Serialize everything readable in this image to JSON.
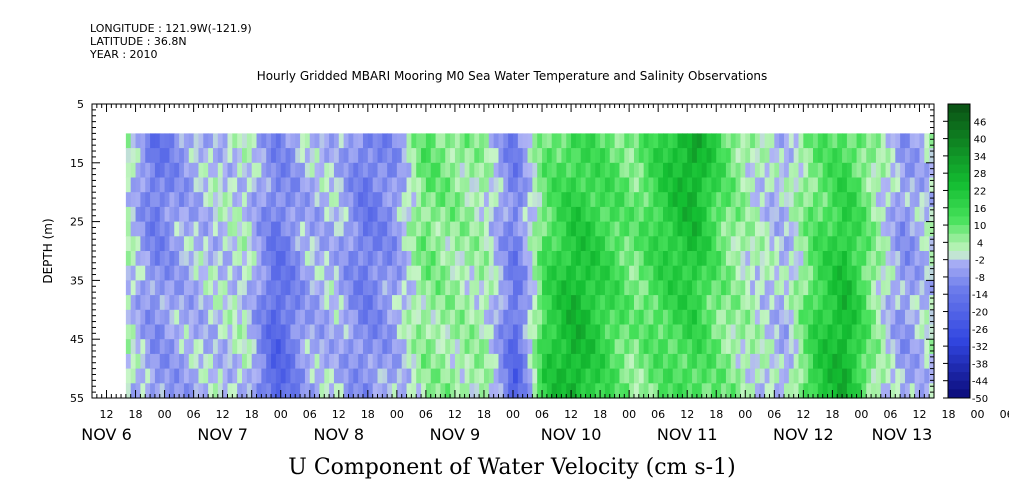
{
  "header": {
    "longitude": "LONGITUDE : 121.9W(-121.9)",
    "latitude": "LATITUDE : 36.8N",
    "year": "YEAR : 2010"
  },
  "chart_data": {
    "type": "heatmap",
    "title": "Hourly Gridded MBARI Mooring M0 Sea Water Temperature and Salinity Observations",
    "xlabel": "U Component of Water Velocity (cm s-1)",
    "ylabel": "DEPTH (m)",
    "ylim": [
      5,
      55
    ],
    "y_ticks": [
      5,
      15,
      25,
      35,
      45,
      55
    ],
    "x_hour_ticks": [
      "12",
      "18",
      "00",
      "06",
      "12",
      "18",
      "00",
      "06",
      "12",
      "18",
      "00",
      "06",
      "12",
      "18",
      "00",
      "06",
      "12",
      "18",
      "00",
      "06",
      "12",
      "18",
      "00",
      "06",
      "12",
      "18",
      "00",
      "06",
      "12",
      "18",
      "00",
      "06"
    ],
    "x_day_labels": [
      "NOV  6",
      "NOV  7",
      "NOV  8",
      "NOV  9",
      "NOV 10",
      "NOV 11",
      "NOV 12",
      "NOV 13"
    ],
    "x_start": "2010-11-06 09:00",
    "x_end": "2010-11-13 15:00",
    "data_start": "2010-11-06 16:00",
    "data_depth_range": [
      10,
      55
    ],
    "colorbar_ticks": [
      "46",
      "40",
      "34",
      "28",
      "22",
      "16",
      "10",
      "4",
      "-2",
      "-8",
      "-14",
      "-20",
      "-26",
      "-32",
      "-38",
      "-44",
      "-50"
    ],
    "colorbar_range": [
      -50,
      52
    ],
    "colors": {
      "strong_positive": "#0a5a14",
      "positive": "#22dd44",
      "weak_positive": "#b4f0b4",
      "weak_negative": "#a8aef0",
      "negative": "#4c5ee8",
      "strong_negative": "#0a0a78"
    },
    "velocity_profile": {
      "times": [
        "11-06 16:00",
        "11-07 00:00",
        "11-07 06:00",
        "11-07 12:00",
        "11-07 18:00",
        "11-08 00:00",
        "11-08 06:00",
        "11-08 12:00",
        "11-08 18:00",
        "11-09 00:00",
        "11-09 06:00",
        "11-09 12:00",
        "11-09 18:00",
        "11-10 00:00",
        "11-10 06:00",
        "11-10 12:00",
        "11-10 18:00",
        "11-11 00:00",
        "11-11 06:00",
        "11-11 12:00",
        "11-11 18:00",
        "11-12 00:00",
        "11-12 06:00",
        "11-12 12:00",
        "11-12 18:00",
        "11-13 00:00",
        "11-13 06:00",
        "11-13 12:00"
      ],
      "values": [
        2,
        -12,
        -6,
        -2,
        0,
        -16,
        -4,
        -2,
        -10,
        -6,
        8,
        6,
        4,
        -18,
        14,
        20,
        12,
        6,
        14,
        22,
        10,
        2,
        -4,
        14,
        20,
        4,
        -6,
        0
      ]
    }
  }
}
